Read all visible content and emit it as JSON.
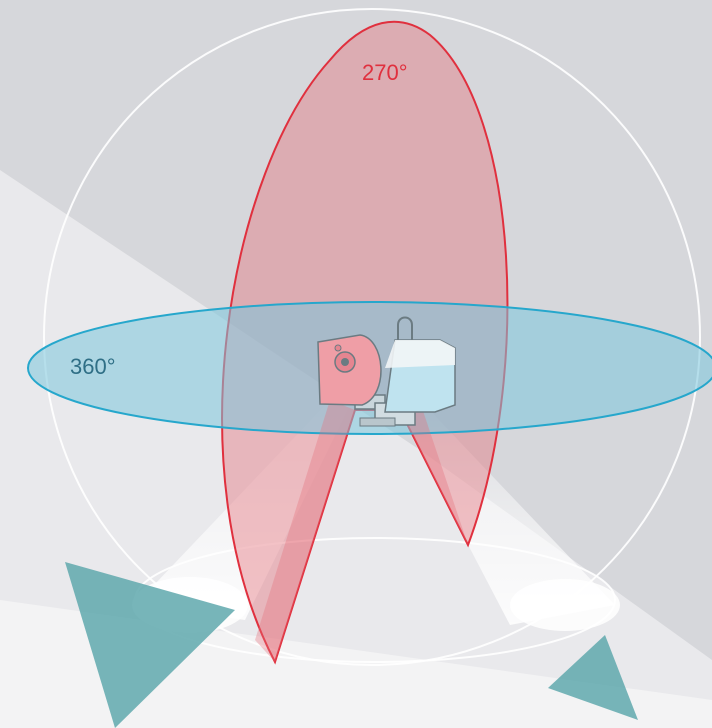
{
  "labels": {
    "vertical_angle": "270°",
    "horizontal_angle": "360°"
  },
  "colors": {
    "background": "#d6d7db",
    "vertical_fov": "#e0303e",
    "horizontal_fov": "#26a7cc",
    "targets": "#5fa8ad",
    "sphere": "#ffffff"
  },
  "icons": {
    "scanner": "laser-scanner-icon",
    "targets": "triangle-target-icon"
  }
}
